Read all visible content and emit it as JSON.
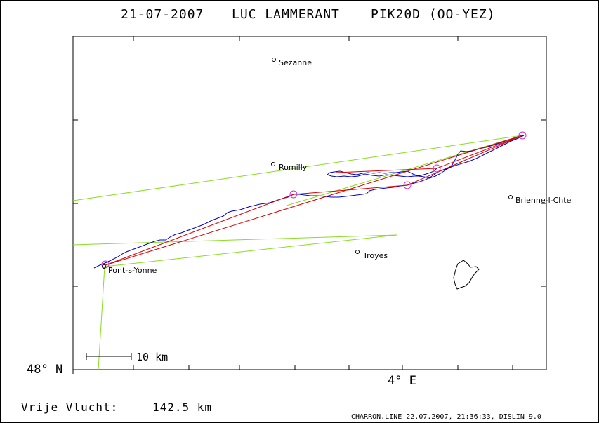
{
  "title": {
    "date": "21-07-2007",
    "pilot": "LUC LAMMERANT",
    "glider": "PIK20D (OO-YEZ)"
  },
  "axes": {
    "lat_label": "48° N",
    "lon_label": "4° E"
  },
  "towns": [
    {
      "name": "Sezanne"
    },
    {
      "name": "Romilly"
    },
    {
      "name": "Brienne-l-Chte"
    },
    {
      "name": "Troyes"
    },
    {
      "name": "Pont-s-Yonne"
    }
  ],
  "scale_bar": {
    "label": "10 km"
  },
  "distance": {
    "label": "Vrije Vlucht:",
    "value": "142.5 km"
  },
  "footer": "CHARRON.LINE 22.07.2007, 21:36:33, DISLIN 9.0",
  "colors": {
    "track": "#0000cc",
    "task": "#dd0000",
    "sector": "#88dd22",
    "turnpoint": "#cc33cc"
  }
}
